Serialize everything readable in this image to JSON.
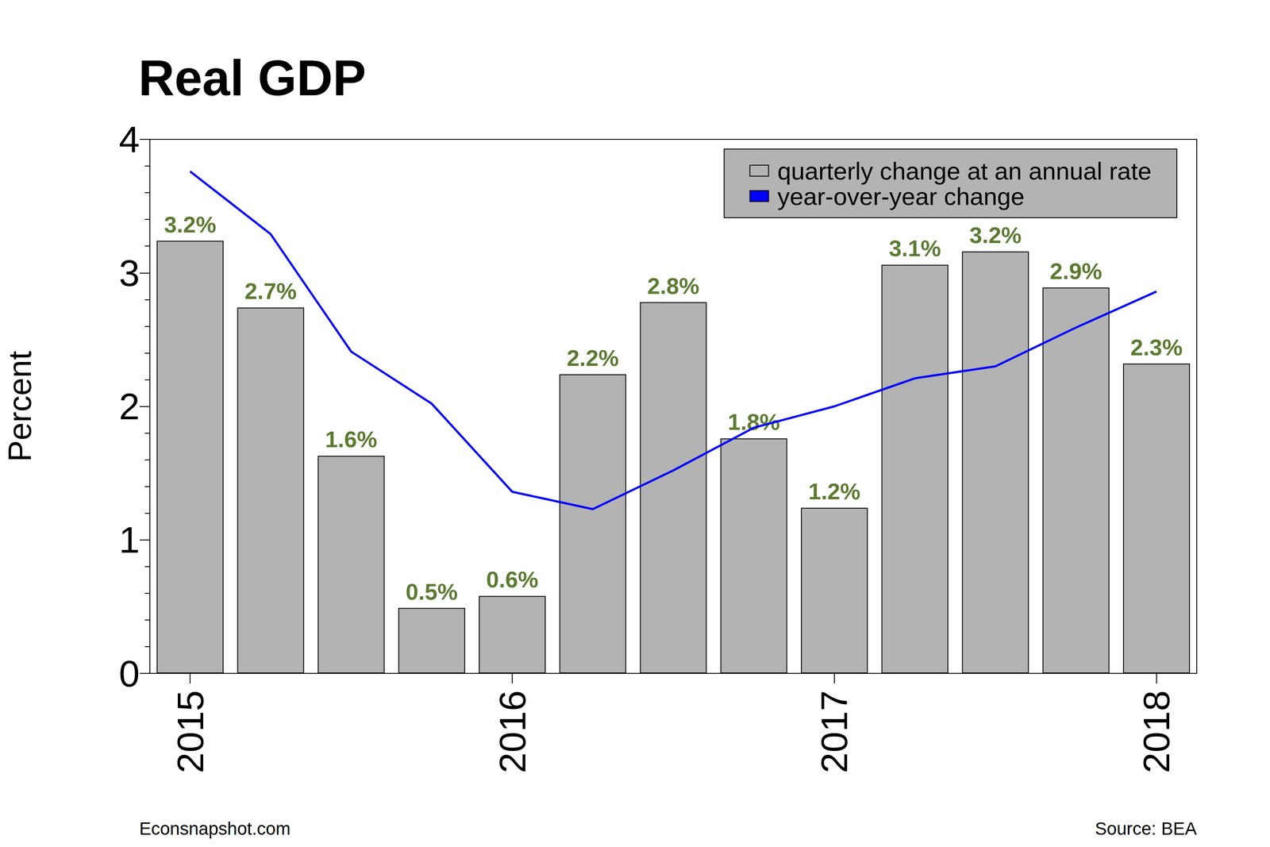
{
  "chart_data": {
    "type": "bar",
    "title": "Real GDP",
    "y_label": "Percent",
    "caption": "Econsnapshot.com",
    "source": "Source: BEA",
    "categories": [
      "2015",
      null,
      null,
      null,
      "2016",
      null,
      null,
      null,
      "2017",
      null,
      null,
      null,
      "2018"
    ],
    "series": [
      {
        "name": "quarterly change at an annual rate",
        "type": "bar",
        "color": "#b3b3b3",
        "values": [
          3.24,
          2.74,
          1.63,
          0.49,
          0.58,
          2.24,
          2.78,
          1.76,
          1.24,
          3.06,
          3.16,
          2.89,
          2.32
        ],
        "value_labels": [
          "3.2%",
          "2.7%",
          "1.6%",
          "0.5%",
          "0.6%",
          "2.2%",
          "2.8%",
          "1.8%",
          "1.2%",
          "3.1%",
          "3.2%",
          "2.9%",
          "2.3%"
        ],
        "data_labels": true
      },
      {
        "name": "year-over-year change",
        "type": "line",
        "color": "#0000ff",
        "marker": "none",
        "values": [
          3.76,
          3.29,
          2.41,
          2.02,
          1.36,
          1.23,
          1.52,
          1.84,
          2.0,
          2.21,
          2.3,
          2.59,
          2.86
        ]
      }
    ],
    "ylim": [
      0,
      4
    ],
    "yticks": [
      0,
      1,
      2,
      3,
      4
    ],
    "grid": false,
    "legend": "top-right"
  }
}
